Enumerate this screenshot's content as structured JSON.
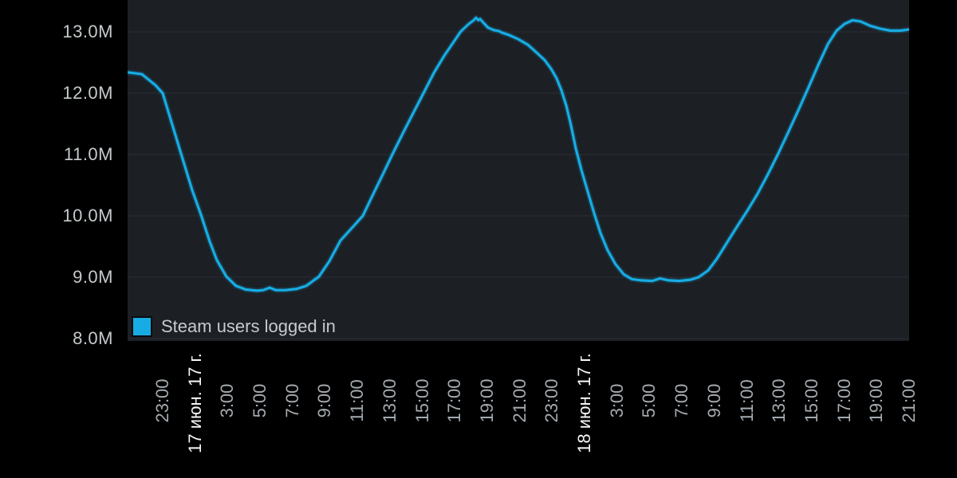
{
  "colors": {
    "page_background": "#000000",
    "plot_background": "#1c1f24",
    "gridline": "#2a2d33",
    "series_line": "#17ace4",
    "y_label_text": "#c5cacd",
    "x_time_label_text": "#a4abb0",
    "x_date_label_text": "#f4f6f7",
    "legend_text": "#c6cbce"
  },
  "legend": {
    "label": "Steam users logged in",
    "position": "bottom-left-inside"
  },
  "chart_data": {
    "type": "line",
    "title": "",
    "xlabel": "",
    "ylabel": "",
    "grid": "horizontal-only",
    "legend_position": "bottom-left-inside",
    "x_unit": "time (2-hour ticks, two days shown)",
    "y_unit": "users (millions)",
    "x_range_hours": [
      -2.16,
      46
    ],
    "y_range_visible": [
      7.97,
      13.52
    ],
    "y_ticks": [
      {
        "value": 13.0,
        "label": "13.0M"
      },
      {
        "value": 12.0,
        "label": "12.0M"
      },
      {
        "value": 11.0,
        "label": "11.0M"
      },
      {
        "value": 10.0,
        "label": "10.0M"
      },
      {
        "value": 9.0,
        "label": "9.0M"
      },
      {
        "value": 8.0,
        "label": "8.0M"
      }
    ],
    "x_ticks": [
      {
        "t": 0,
        "label": "23:00",
        "is_date": false
      },
      {
        "t": 2,
        "label": "17 июн. 17 г.",
        "is_date": true
      },
      {
        "t": 4,
        "label": "3:00",
        "is_date": false
      },
      {
        "t": 6,
        "label": "5:00",
        "is_date": false
      },
      {
        "t": 8,
        "label": "7:00",
        "is_date": false
      },
      {
        "t": 10,
        "label": "9:00",
        "is_date": false
      },
      {
        "t": 12,
        "label": "11:00",
        "is_date": false
      },
      {
        "t": 14,
        "label": "13:00",
        "is_date": false
      },
      {
        "t": 16,
        "label": "15:00",
        "is_date": false
      },
      {
        "t": 18,
        "label": "17:00",
        "is_date": false
      },
      {
        "t": 20,
        "label": "19:00",
        "is_date": false
      },
      {
        "t": 22,
        "label": "21:00",
        "is_date": false
      },
      {
        "t": 24,
        "label": "23:00",
        "is_date": false
      },
      {
        "t": 26,
        "label": "18 июн. 17 г.",
        "is_date": true
      },
      {
        "t": 28,
        "label": "3:00",
        "is_date": false
      },
      {
        "t": 30,
        "label": "5:00",
        "is_date": false
      },
      {
        "t": 32,
        "label": "7:00",
        "is_date": false
      },
      {
        "t": 34,
        "label": "9:00",
        "is_date": false
      },
      {
        "t": 36,
        "label": "11:00",
        "is_date": false
      },
      {
        "t": 38,
        "label": "13:00",
        "is_date": false
      },
      {
        "t": 40,
        "label": "15:00",
        "is_date": false
      },
      {
        "t": 42,
        "label": "17:00",
        "is_date": false
      },
      {
        "t": 44,
        "label": "19:00",
        "is_date": false
      },
      {
        "t": 46,
        "label": "21:00",
        "is_date": false
      }
    ],
    "series": [
      {
        "name": "Steam users logged in",
        "color": "#17ace4",
        "points_format": "[hours_since_first_tick_23:00_jun16, users_in_millions]",
        "points": [
          [
            -2.16,
            12.34
          ],
          [
            -1.28,
            12.31
          ],
          [
            -0.44,
            12.13
          ],
          [
            0.0,
            12.0
          ],
          [
            0.44,
            11.62
          ],
          [
            1.13,
            11.02
          ],
          [
            1.82,
            10.42
          ],
          [
            2.36,
            10.02
          ],
          [
            2.9,
            9.58
          ],
          [
            3.34,
            9.28
          ],
          [
            3.93,
            9.01
          ],
          [
            4.52,
            8.86
          ],
          [
            5.11,
            8.8
          ],
          [
            5.8,
            8.78
          ],
          [
            6.19,
            8.79
          ],
          [
            6.59,
            8.83
          ],
          [
            6.98,
            8.79
          ],
          [
            7.57,
            8.79
          ],
          [
            8.26,
            8.81
          ],
          [
            8.85,
            8.86
          ],
          [
            9.63,
            9.01
          ],
          [
            10.27,
            9.26
          ],
          [
            10.96,
            9.6
          ],
          [
            11.65,
            9.8
          ],
          [
            12.33,
            10.0
          ],
          [
            13.02,
            10.38
          ],
          [
            13.61,
            10.7
          ],
          [
            14.15,
            11.0
          ],
          [
            14.79,
            11.34
          ],
          [
            15.43,
            11.67
          ],
          [
            16.07,
            12.0
          ],
          [
            16.71,
            12.33
          ],
          [
            17.35,
            12.61
          ],
          [
            17.89,
            12.82
          ],
          [
            18.38,
            13.01
          ],
          [
            18.87,
            13.13
          ],
          [
            19.17,
            13.19
          ],
          [
            19.31,
            13.23
          ],
          [
            19.46,
            13.19
          ],
          [
            19.56,
            13.21
          ],
          [
            19.76,
            13.15
          ],
          [
            20.05,
            13.07
          ],
          [
            20.39,
            13.03
          ],
          [
            20.74,
            13.01
          ],
          [
            20.89,
            12.99
          ],
          [
            21.33,
            12.95
          ],
          [
            21.92,
            12.88
          ],
          [
            22.51,
            12.79
          ],
          [
            23.05,
            12.66
          ],
          [
            23.54,
            12.54
          ],
          [
            23.93,
            12.4
          ],
          [
            24.28,
            12.24
          ],
          [
            24.57,
            12.05
          ],
          [
            24.87,
            11.8
          ],
          [
            25.16,
            11.48
          ],
          [
            25.46,
            11.1
          ],
          [
            25.8,
            10.75
          ],
          [
            26.19,
            10.4
          ],
          [
            26.58,
            10.05
          ],
          [
            26.98,
            9.72
          ],
          [
            27.42,
            9.44
          ],
          [
            27.91,
            9.21
          ],
          [
            28.4,
            9.05
          ],
          [
            28.9,
            8.97
          ],
          [
            29.49,
            8.95
          ],
          [
            30.17,
            8.94
          ],
          [
            30.66,
            8.98
          ],
          [
            31.16,
            8.95
          ],
          [
            31.84,
            8.94
          ],
          [
            32.53,
            8.96
          ],
          [
            33.02,
            9.0
          ],
          [
            33.61,
            9.11
          ],
          [
            34.15,
            9.3
          ],
          [
            34.74,
            9.55
          ],
          [
            35.38,
            9.82
          ],
          [
            36.02,
            10.08
          ],
          [
            36.66,
            10.36
          ],
          [
            37.3,
            10.68
          ],
          [
            37.94,
            11.02
          ],
          [
            38.58,
            11.38
          ],
          [
            39.22,
            11.75
          ],
          [
            39.81,
            12.1
          ],
          [
            40.4,
            12.46
          ],
          [
            40.99,
            12.8
          ],
          [
            41.53,
            13.02
          ],
          [
            42.02,
            13.13
          ],
          [
            42.51,
            13.19
          ],
          [
            43.0,
            13.17
          ],
          [
            43.59,
            13.1
          ],
          [
            44.23,
            13.05
          ],
          [
            44.86,
            13.02
          ],
          [
            45.45,
            13.02
          ],
          [
            46.0,
            13.04
          ]
        ]
      }
    ]
  }
}
